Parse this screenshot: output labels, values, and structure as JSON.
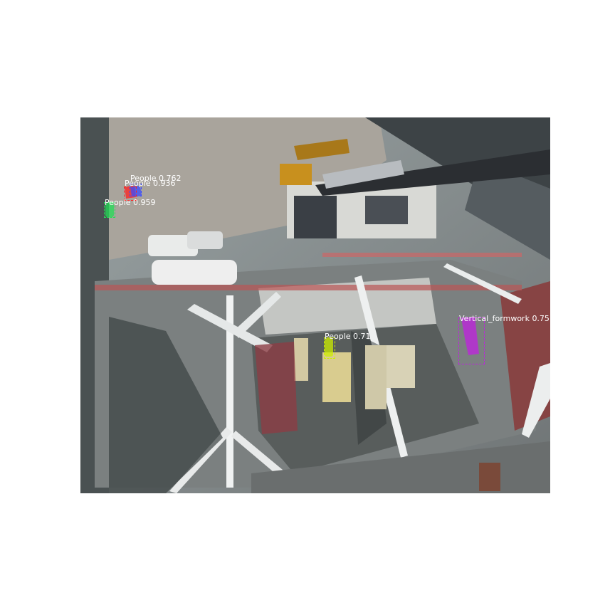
{
  "detections": [
    {
      "label": "People 0.762",
      "color": "#3a4bff"
    },
    {
      "label": "People 0.936",
      "color": "#ff2020"
    },
    {
      "label": "People 0.959",
      "color": "#22dd55"
    },
    {
      "label": "People 0.71",
      "color": "#ccee00"
    },
    {
      "label": "Vertical_formwork 0.75",
      "color": "#c020e0"
    }
  ]
}
